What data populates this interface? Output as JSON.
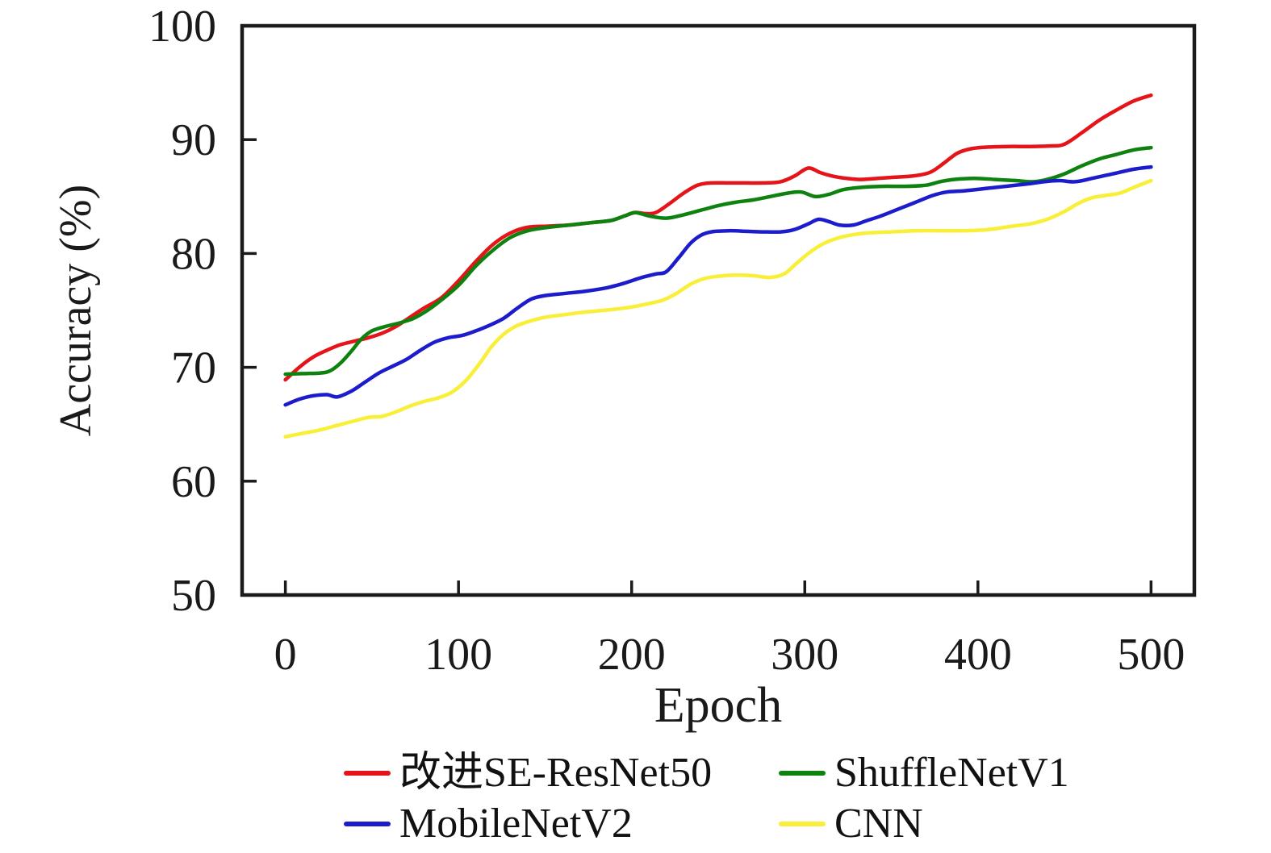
{
  "chart_data": {
    "type": "line",
    "title": "",
    "xlabel": "Epoch",
    "ylabel": "Accuracy (%)",
    "xlim": [
      -25,
      525
    ],
    "ylim": [
      50,
      100
    ],
    "x_ticks": [
      0,
      100,
      200,
      300,
      400,
      500
    ],
    "y_ticks": [
      50,
      60,
      70,
      80,
      90,
      100
    ],
    "grid": false,
    "legend_position": "bottom",
    "axis_color": "#1a1a1a",
    "series": [
      {
        "name": "改进SE-ResNet50",
        "color": "#e41418",
        "points": [
          [
            0,
            68.9
          ],
          [
            8,
            70.0
          ],
          [
            16,
            70.9
          ],
          [
            24,
            71.5
          ],
          [
            32,
            72.0
          ],
          [
            40,
            72.3
          ],
          [
            48,
            72.6
          ],
          [
            56,
            73.0
          ],
          [
            64,
            73.6
          ],
          [
            72,
            74.4
          ],
          [
            80,
            75.2
          ],
          [
            90,
            76.1
          ],
          [
            100,
            77.6
          ],
          [
            110,
            79.3
          ],
          [
            120,
            80.8
          ],
          [
            130,
            81.8
          ],
          [
            140,
            82.3
          ],
          [
            152,
            82.4
          ],
          [
            164,
            82.5
          ],
          [
            176,
            82.7
          ],
          [
            188,
            82.9
          ],
          [
            196,
            83.3
          ],
          [
            202,
            83.6
          ],
          [
            208,
            83.5
          ],
          [
            214,
            83.6
          ],
          [
            222,
            84.4
          ],
          [
            230,
            85.3
          ],
          [
            238,
            86.0
          ],
          [
            246,
            86.2
          ],
          [
            256,
            86.2
          ],
          [
            266,
            86.2
          ],
          [
            276,
            86.2
          ],
          [
            286,
            86.3
          ],
          [
            294,
            86.8
          ],
          [
            302,
            87.5
          ],
          [
            309,
            87.1
          ],
          [
            316,
            86.8
          ],
          [
            324,
            86.6
          ],
          [
            332,
            86.5
          ],
          [
            342,
            86.6
          ],
          [
            352,
            86.7
          ],
          [
            362,
            86.8
          ],
          [
            372,
            87.1
          ],
          [
            380,
            87.9
          ],
          [
            388,
            88.8
          ],
          [
            396,
            89.2
          ],
          [
            406,
            89.35
          ],
          [
            418,
            89.4
          ],
          [
            430,
            89.4
          ],
          [
            442,
            89.45
          ],
          [
            450,
            89.6
          ],
          [
            460,
            90.6
          ],
          [
            470,
            91.7
          ],
          [
            480,
            92.6
          ],
          [
            490,
            93.4
          ],
          [
            500,
            93.9
          ]
        ]
      },
      {
        "name": "ShuffleNetV1",
        "color": "#0e820e",
        "points": [
          [
            0,
            69.4
          ],
          [
            10,
            69.45
          ],
          [
            20,
            69.5
          ],
          [
            26,
            69.7
          ],
          [
            32,
            70.4
          ],
          [
            38,
            71.4
          ],
          [
            44,
            72.5
          ],
          [
            50,
            73.2
          ],
          [
            58,
            73.6
          ],
          [
            66,
            73.9
          ],
          [
            74,
            74.3
          ],
          [
            82,
            75.0
          ],
          [
            90,
            75.9
          ],
          [
            100,
            77.2
          ],
          [
            110,
            78.9
          ],
          [
            120,
            80.3
          ],
          [
            130,
            81.4
          ],
          [
            140,
            82.0
          ],
          [
            152,
            82.3
          ],
          [
            164,
            82.5
          ],
          [
            176,
            82.7
          ],
          [
            188,
            82.9
          ],
          [
            196,
            83.3
          ],
          [
            202,
            83.6
          ],
          [
            210,
            83.3
          ],
          [
            220,
            83.1
          ],
          [
            230,
            83.4
          ],
          [
            240,
            83.8
          ],
          [
            250,
            84.2
          ],
          [
            260,
            84.5
          ],
          [
            270,
            84.7
          ],
          [
            280,
            85.0
          ],
          [
            290,
            85.3
          ],
          [
            298,
            85.4
          ],
          [
            306,
            85.0
          ],
          [
            314,
            85.2
          ],
          [
            322,
            85.6
          ],
          [
            332,
            85.8
          ],
          [
            345,
            85.9
          ],
          [
            358,
            85.9
          ],
          [
            370,
            86.0
          ],
          [
            378,
            86.3
          ],
          [
            386,
            86.5
          ],
          [
            398,
            86.6
          ],
          [
            410,
            86.5
          ],
          [
            422,
            86.4
          ],
          [
            432,
            86.3
          ],
          [
            440,
            86.5
          ],
          [
            450,
            87.0
          ],
          [
            460,
            87.7
          ],
          [
            470,
            88.3
          ],
          [
            480,
            88.7
          ],
          [
            490,
            89.1
          ],
          [
            500,
            89.3
          ]
        ]
      },
      {
        "name": "MobileNetV2",
        "color": "#1c1ccd",
        "points": [
          [
            0,
            66.7
          ],
          [
            8,
            67.2
          ],
          [
            16,
            67.5
          ],
          [
            24,
            67.6
          ],
          [
            30,
            67.4
          ],
          [
            38,
            67.9
          ],
          [
            46,
            68.7
          ],
          [
            54,
            69.5
          ],
          [
            62,
            70.1
          ],
          [
            70,
            70.7
          ],
          [
            78,
            71.5
          ],
          [
            86,
            72.2
          ],
          [
            94,
            72.6
          ],
          [
            102,
            72.8
          ],
          [
            110,
            73.2
          ],
          [
            118,
            73.7
          ],
          [
            126,
            74.3
          ],
          [
            134,
            75.2
          ],
          [
            142,
            76.0
          ],
          [
            150,
            76.3
          ],
          [
            162,
            76.5
          ],
          [
            174,
            76.7
          ],
          [
            186,
            77.0
          ],
          [
            196,
            77.4
          ],
          [
            206,
            77.9
          ],
          [
            214,
            78.2
          ],
          [
            220,
            78.4
          ],
          [
            227,
            79.6
          ],
          [
            234,
            80.9
          ],
          [
            240,
            81.6
          ],
          [
            246,
            81.9
          ],
          [
            256,
            82.0
          ],
          [
            266,
            81.95
          ],
          [
            276,
            81.9
          ],
          [
            286,
            81.9
          ],
          [
            294,
            82.1
          ],
          [
            302,
            82.6
          ],
          [
            308,
            83.0
          ],
          [
            314,
            82.8
          ],
          [
            320,
            82.5
          ],
          [
            328,
            82.5
          ],
          [
            336,
            82.9
          ],
          [
            344,
            83.3
          ],
          [
            354,
            83.9
          ],
          [
            364,
            84.5
          ],
          [
            374,
            85.1
          ],
          [
            382,
            85.4
          ],
          [
            392,
            85.5
          ],
          [
            404,
            85.7
          ],
          [
            416,
            85.9
          ],
          [
            428,
            86.1
          ],
          [
            438,
            86.3
          ],
          [
            447,
            86.4
          ],
          [
            456,
            86.3
          ],
          [
            466,
            86.6
          ],
          [
            478,
            87.0
          ],
          [
            490,
            87.4
          ],
          [
            500,
            87.6
          ]
        ]
      },
      {
        "name": "CNN",
        "color": "#f9ef38",
        "points": [
          [
            0,
            63.9
          ],
          [
            10,
            64.2
          ],
          [
            20,
            64.5
          ],
          [
            30,
            64.9
          ],
          [
            40,
            65.3
          ],
          [
            48,
            65.6
          ],
          [
            56,
            65.7
          ],
          [
            64,
            66.1
          ],
          [
            72,
            66.6
          ],
          [
            80,
            67.0
          ],
          [
            88,
            67.3
          ],
          [
            96,
            67.8
          ],
          [
            104,
            68.8
          ],
          [
            112,
            70.3
          ],
          [
            119,
            71.8
          ],
          [
            126,
            72.9
          ],
          [
            133,
            73.6
          ],
          [
            140,
            74.0
          ],
          [
            150,
            74.4
          ],
          [
            160,
            74.6
          ],
          [
            170,
            74.8
          ],
          [
            180,
            74.95
          ],
          [
            190,
            75.1
          ],
          [
            200,
            75.3
          ],
          [
            210,
            75.6
          ],
          [
            218,
            75.9
          ],
          [
            226,
            76.5
          ],
          [
            234,
            77.3
          ],
          [
            242,
            77.8
          ],
          [
            250,
            78.0
          ],
          [
            260,
            78.1
          ],
          [
            270,
            78.05
          ],
          [
            280,
            77.9
          ],
          [
            288,
            78.2
          ],
          [
            295,
            79.1
          ],
          [
            302,
            80.0
          ],
          [
            310,
            80.8
          ],
          [
            318,
            81.3
          ],
          [
            326,
            81.6
          ],
          [
            336,
            81.8
          ],
          [
            350,
            81.9
          ],
          [
            364,
            82.0
          ],
          [
            378,
            82.0
          ],
          [
            392,
            82.0
          ],
          [
            406,
            82.1
          ],
          [
            420,
            82.4
          ],
          [
            430,
            82.6
          ],
          [
            440,
            83.0
          ],
          [
            450,
            83.7
          ],
          [
            458,
            84.4
          ],
          [
            466,
            84.9
          ],
          [
            474,
            85.1
          ],
          [
            482,
            85.3
          ],
          [
            490,
            85.8
          ],
          [
            500,
            86.4
          ]
        ]
      }
    ]
  }
}
